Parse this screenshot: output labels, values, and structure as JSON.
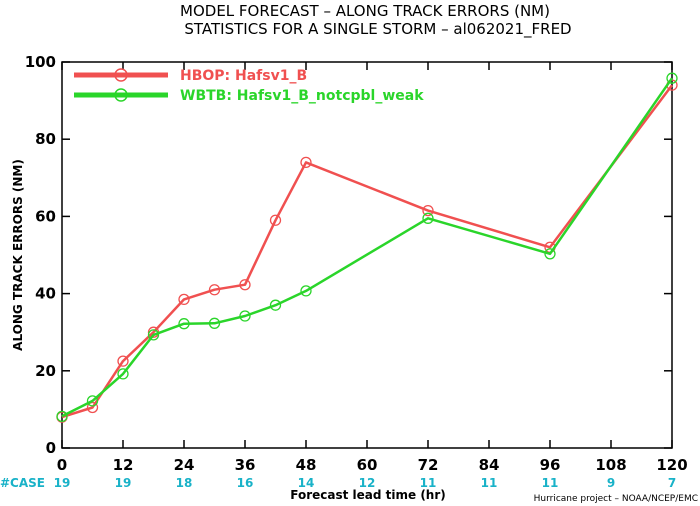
{
  "chart_data": {
    "type": "line",
    "title": "MODEL FORECAST – ALONG TRACK ERRORS (NM)",
    "subtitle": "STATISTICS FOR A SINGLE STORM – al062021_FRED",
    "xlabel": "Forecast lead time (hr)",
    "ylabel": "ALONG TRACK ERRORS (NM)",
    "xlim": [
      0,
      120
    ],
    "ylim": [
      0,
      100
    ],
    "xticks": [
      0,
      12,
      24,
      36,
      48,
      60,
      72,
      84,
      96,
      108,
      120
    ],
    "yticks": [
      0,
      20,
      40,
      60,
      80,
      100
    ],
    "grid": false,
    "legend_position": "top-left",
    "case_label": "#CASE",
    "case_x": [
      0,
      12,
      24,
      36,
      48,
      60,
      72,
      84,
      96,
      108,
      120
    ],
    "cases": [
      "19",
      "19",
      "18",
      "16",
      "14",
      "12",
      "11",
      "11",
      "11",
      "9",
      "7"
    ],
    "credit": "Hurricane project – NOAA/NCEP/EMC",
    "series": [
      {
        "name": "HBOP: Hafsv1_B",
        "color": "#f05050",
        "x": [
          0,
          6,
          12,
          18,
          24,
          30,
          36,
          42,
          48,
          72,
          96,
          120
        ],
        "y": [
          8,
          10.5,
          22.5,
          30,
          38.5,
          41,
          42.3,
          59,
          74,
          61.5,
          52,
          94
        ]
      },
      {
        "name": "WBTB: Hafsv1_B_notcpbl_weak",
        "color": "#2ad52a",
        "x": [
          0,
          6,
          12,
          18,
          24,
          30,
          36,
          42,
          48,
          72,
          96,
          120
        ],
        "y": [
          8.2,
          12.2,
          19.2,
          29.3,
          32.2,
          32.3,
          34.2,
          37,
          40.7,
          59.5,
          50.3,
          95.8
        ]
      }
    ]
  }
}
